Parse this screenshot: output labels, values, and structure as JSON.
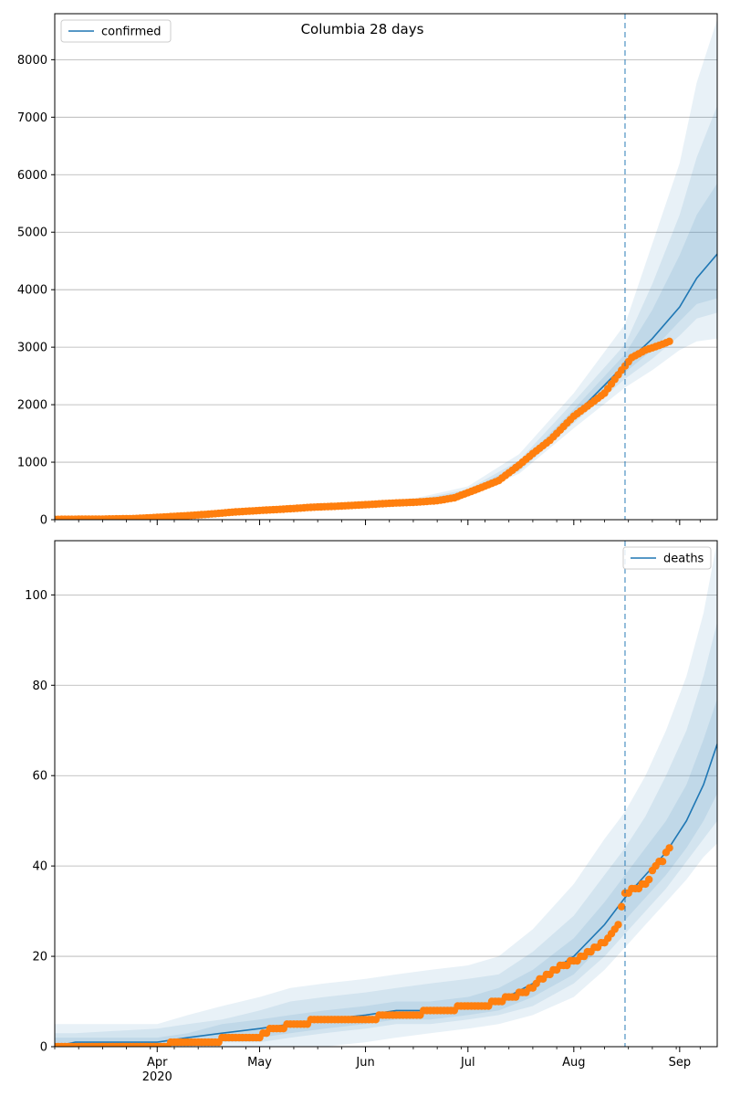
{
  "figure_title": "Columbia 28 days",
  "colors": {
    "model": "#1f77b4",
    "observed": "#ff7f0e",
    "grid": "#b0b0b0"
  },
  "chart_data": [
    {
      "type": "line",
      "name": "confirmed-panel",
      "legend": {
        "label": "confirmed",
        "placement": "upper-left"
      },
      "ylim": [
        0,
        8800
      ],
      "yticks": [
        0,
        1000,
        2000,
        3000,
        4000,
        5000,
        6000,
        7000,
        8000
      ],
      "xlim": [
        "2020-03-02",
        "2020-09-12"
      ],
      "grid": "y",
      "forecast_start": "2020-08-16",
      "model": {
        "x": [
          "2020-03-02",
          "2020-03-16",
          "2020-04-01",
          "2020-04-16",
          "2020-05-01",
          "2020-05-16",
          "2020-06-01",
          "2020-06-16",
          "2020-07-01",
          "2020-07-16",
          "2020-08-01",
          "2020-08-16",
          "2020-08-24",
          "2020-09-01",
          "2020-09-06",
          "2020-09-12"
        ],
        "values": [
          10,
          15,
          40,
          90,
          160,
          220,
          260,
          310,
          460,
          900,
          1800,
          2700,
          3150,
          3700,
          4200,
          4620
        ],
        "bands": [
          {
            "lower": [
              10,
              15,
              40,
              85,
              150,
              205,
              240,
              290,
              420,
              800,
              1590,
              2300,
              2600,
              2950,
              3100,
              3150
            ],
            "upper": [
              20,
              25,
              50,
              110,
              190,
              260,
              300,
              380,
              580,
              1140,
              2200,
              3400,
              4800,
              6200,
              7600,
              8700
            ]
          },
          {
            "lower": [
              10,
              15,
              40,
              88,
              155,
              212,
              250,
              298,
              440,
              840,
              1680,
              2450,
              2800,
              3200,
              3500,
              3600
            ],
            "upper": [
              15,
              20,
              45,
              100,
              178,
              240,
              285,
              350,
              530,
              1030,
              2050,
              3050,
              4100,
              5300,
              6300,
              7200
            ]
          },
          {
            "lower": [
              10,
              15,
              40,
              89,
              157,
              216,
              255,
              304,
              450,
              870,
              1740,
              2560,
              2950,
              3450,
              3750,
              3850
            ],
            "upper": [
              12,
              18,
              42,
              95,
              170,
              232,
              272,
              330,
              500,
              960,
              1920,
              2880,
              3650,
              4600,
              5300,
              5850
            ]
          }
        ]
      },
      "observed": {
        "x": [
          "2020-03-02",
          "2020-03-16",
          "2020-03-26",
          "2020-04-01",
          "2020-04-10",
          "2020-04-16",
          "2020-04-24",
          "2020-05-01",
          "2020-05-10",
          "2020-05-16",
          "2020-05-24",
          "2020-06-01",
          "2020-06-08",
          "2020-06-16",
          "2020-06-22",
          "2020-06-27",
          "2020-07-01",
          "2020-07-05",
          "2020-07-10",
          "2020-07-16",
          "2020-07-20",
          "2020-07-25",
          "2020-08-01",
          "2020-08-06",
          "2020-08-10",
          "2020-08-15",
          "2020-08-18",
          "2020-08-22",
          "2020-08-26",
          "2020-08-29"
        ],
        "values": [
          5,
          10,
          20,
          40,
          70,
          95,
          135,
          160,
          190,
          215,
          235,
          260,
          285,
          305,
          330,
          380,
          470,
          560,
          680,
          950,
          1150,
          1380,
          1800,
          2020,
          2200,
          2600,
          2820,
          2950,
          3030,
          3100
        ]
      }
    },
    {
      "type": "line",
      "name": "deaths-panel",
      "legend": {
        "label": "deaths",
        "placement": "upper-right"
      },
      "ylim": [
        0,
        112
      ],
      "yticks": [
        0,
        20,
        40,
        60,
        80,
        100
      ],
      "xlim": [
        "2020-03-02",
        "2020-09-12"
      ],
      "grid": "y",
      "forecast_start": "2020-08-16",
      "xticks": [
        {
          "date": "2020-04-01",
          "label": "Apr",
          "sublabel": "2020"
        },
        {
          "date": "2020-05-01",
          "label": "May"
        },
        {
          "date": "2020-06-01",
          "label": "Jun"
        },
        {
          "date": "2020-07-01",
          "label": "Jul"
        },
        {
          "date": "2020-08-01",
          "label": "Aug"
        },
        {
          "date": "2020-09-01",
          "label": "Sep"
        }
      ],
      "model": {
        "x": [
          "2020-03-02",
          "2020-03-08",
          "2020-04-01",
          "2020-04-10",
          "2020-04-20",
          "2020-05-01",
          "2020-05-10",
          "2020-05-20",
          "2020-06-01",
          "2020-06-10",
          "2020-06-20",
          "2020-07-01",
          "2020-07-10",
          "2020-07-20",
          "2020-08-01",
          "2020-08-10",
          "2020-08-16",
          "2020-08-22",
          "2020-08-28",
          "2020-09-03",
          "2020-09-08",
          "2020-09-12"
        ],
        "values": [
          0,
          1,
          1,
          2,
          3,
          4,
          5,
          6,
          7,
          8,
          8,
          9,
          10,
          14,
          20,
          27,
          33,
          38,
          43,
          50,
          58,
          67
        ],
        "bands": [
          {
            "lower": [
              0,
              0,
              0,
              0,
              0,
              0,
              0,
              0,
              1,
              2,
              3,
              4,
              5,
              7,
              11,
              17,
              22,
              27,
              32,
              37,
              42,
              45
            ],
            "upper": [
              5,
              5,
              5,
              7,
              9,
              11,
              13,
              14,
              15,
              16,
              17,
              18,
              20,
              26,
              36,
              46,
              52,
              60,
              70,
              82,
              96,
              112
            ]
          },
          {
            "lower": [
              0,
              0,
              0,
              0,
              1,
              1,
              2,
              3,
              4,
              5,
              5,
              6,
              7,
              9,
              14,
              20,
              25,
              30,
              35,
              41,
              46,
              50
            ],
            "upper": [
              3,
              3,
              4,
              5,
              6,
              8,
              10,
              11,
              12,
              13,
              14,
              15,
              16,
              21,
              29,
              38,
              44,
              51,
              60,
              70,
              82,
              94
            ]
          },
          {
            "lower": [
              0,
              0,
              0,
              1,
              2,
              2,
              3,
              4,
              5,
              6,
              6,
              7,
              8,
              11,
              16,
              23,
              28,
              33,
              38,
              44,
              50,
              56
            ],
            "upper": [
              2,
              2,
              2,
              3,
              5,
              6,
              7,
              8,
              9,
              10,
              10,
              11,
              13,
              17,
              24,
              32,
              38,
              44,
              50,
              58,
              68,
              77
            ]
          }
        ]
      },
      "observed": {
        "x": [
          "2020-03-02",
          "2020-03-20",
          "2020-04-01",
          "2020-04-09",
          "2020-04-18",
          "2020-04-22",
          "2020-05-01",
          "2020-05-05",
          "2020-05-12",
          "2020-05-20",
          "2020-05-30",
          "2020-06-10",
          "2020-06-25",
          "2020-07-01",
          "2020-07-06",
          "2020-07-10",
          "2020-07-18",
          "2020-07-21",
          "2020-07-26",
          "2020-08-01",
          "2020-08-06",
          "2020-08-10",
          "2020-08-14",
          "2020-08-16",
          "2020-08-20",
          "2020-08-22",
          "2020-08-25",
          "2020-08-27",
          "2020-08-29"
        ],
        "values": [
          0,
          0,
          0,
          1,
          1,
          2,
          2,
          4,
          5,
          6,
          6,
          7,
          8,
          9,
          9,
          10,
          12,
          14,
          17,
          19,
          21,
          23,
          27,
          34,
          35,
          36,
          40,
          41,
          44
        ]
      }
    }
  ]
}
